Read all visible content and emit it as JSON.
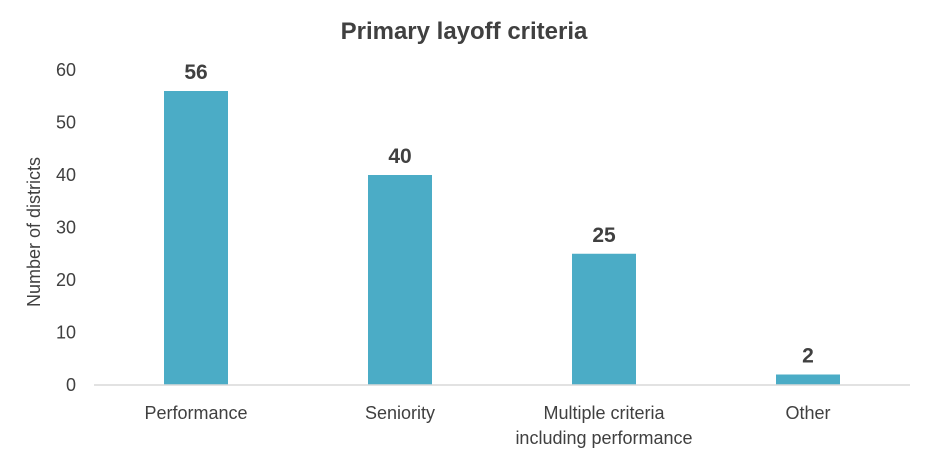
{
  "chart_data": {
    "type": "bar",
    "title": "Primary layoff criteria",
    "xlabel": "",
    "ylabel": "Number of districts",
    "categories": [
      [
        "Performance"
      ],
      [
        "Seniority"
      ],
      [
        "Multiple criteria",
        "including performance"
      ],
      [
        "Other"
      ]
    ],
    "values": [
      56,
      40,
      25,
      2
    ],
    "ylim": [
      0,
      60
    ],
    "yticks": [
      0,
      10,
      20,
      30,
      40,
      50,
      60
    ],
    "grid": false,
    "legend": "none",
    "colors": {
      "bar": "#4BACC6",
      "text": "#404040",
      "axis": "#D9D9D9"
    }
  }
}
